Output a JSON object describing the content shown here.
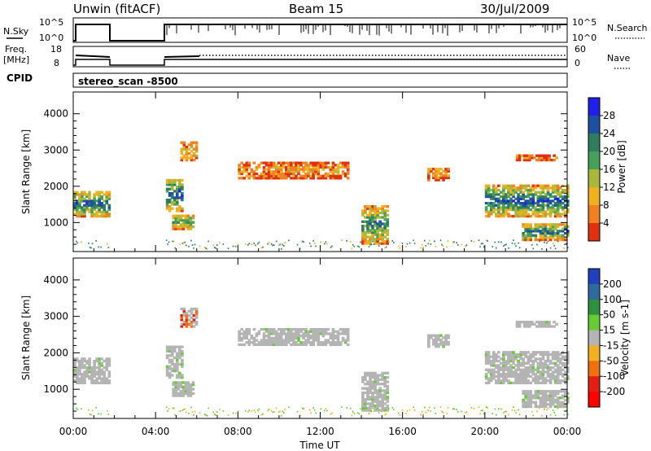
{
  "header": {
    "station": "Unwin (fitACF)",
    "beam": "Beam 15",
    "date": "30/Jul/2009"
  },
  "top_panels": {
    "nsky_label": "N.Sky",
    "nsky_ticks": [
      "10^5",
      "10^0"
    ],
    "nsearch_label": "N.Search",
    "nsearch_ticks": [
      "10^5",
      "10^0"
    ],
    "freq_label_1": "Freq.",
    "freq_label_2": "[MHz]",
    "freq_ticks": [
      "18",
      "8"
    ],
    "nave_label": "Nave",
    "nave_ticks": [
      "60",
      "0"
    ],
    "cpid_label": "CPID",
    "cpid_value": "stereo_scan -8500"
  },
  "chart_data": [
    {
      "type": "heatmap",
      "name": "power",
      "ylabel": "Slant Range [km]",
      "ylim": [
        200,
        4600
      ],
      "yticks": [
        "1000",
        "2000",
        "3000",
        "4000"
      ],
      "colorbar_label": "Power [dB]",
      "colorbar_ticks": [
        "4",
        "8",
        "12",
        "16",
        "20",
        "24",
        "28"
      ],
      "colorbar_colors": [
        "#1f1fe8",
        "#1f4fa0",
        "#2e7d5e",
        "#46a05a",
        "#a8b83a",
        "#f0b020",
        "#f08020",
        "#e03010"
      ],
      "echo_regions": [
        {
          "t0": 0.0,
          "t1": 1.8,
          "r0": 1150,
          "r1": 1850,
          "level": 0.55
        },
        {
          "t0": 4.5,
          "t1": 5.3,
          "r0": 1300,
          "r1": 2200,
          "level": 0.6
        },
        {
          "t0": 5.2,
          "t1": 6.0,
          "r0": 2700,
          "r1": 3200,
          "level": 0.3
        },
        {
          "t0": 4.8,
          "t1": 5.8,
          "r0": 800,
          "r1": 1200,
          "level": 0.45
        },
        {
          "t0": 8.0,
          "t1": 13.3,
          "r0": 2200,
          "r1": 2650,
          "level": 0.2
        },
        {
          "t0": 14.0,
          "t1": 15.2,
          "r0": 400,
          "r1": 1450,
          "level": 0.5
        },
        {
          "t0": 17.2,
          "t1": 18.2,
          "r0": 2150,
          "r1": 2500,
          "level": 0.2
        },
        {
          "t0": 20.0,
          "t1": 24.0,
          "r0": 1150,
          "r1": 2000,
          "level": 0.6
        },
        {
          "t0": 21.8,
          "t1": 24.0,
          "r0": 500,
          "r1": 950,
          "level": 0.55
        },
        {
          "t0": 21.5,
          "t1": 23.5,
          "r0": 2700,
          "r1": 2850,
          "level": 0.15
        }
      ]
    },
    {
      "type": "heatmap",
      "name": "velocity",
      "ylabel": "Slant Range [km]",
      "ylim": [
        200,
        4600
      ],
      "yticks": [
        "1000",
        "2000",
        "3000",
        "4000"
      ],
      "colorbar_label": "Velocity [m s-1]",
      "colorbar_ticks": [
        "200",
        "100",
        "50",
        "15",
        "-15",
        "-50",
        "-100",
        "-200"
      ],
      "colorbar_colors": [
        "#2040c0",
        "#2e6aa0",
        "#2f9040",
        "#66cc33",
        "#b4b4b4",
        "#f0b020",
        "#f07010",
        "#e02010",
        "#ff0000"
      ],
      "xlabel": "Time UT",
      "xticks": [
        "00:00",
        "04:00",
        "08:00",
        "12:00",
        "16:00",
        "20:00",
        "00:00"
      ],
      "xlim": [
        0,
        24
      ]
    }
  ]
}
